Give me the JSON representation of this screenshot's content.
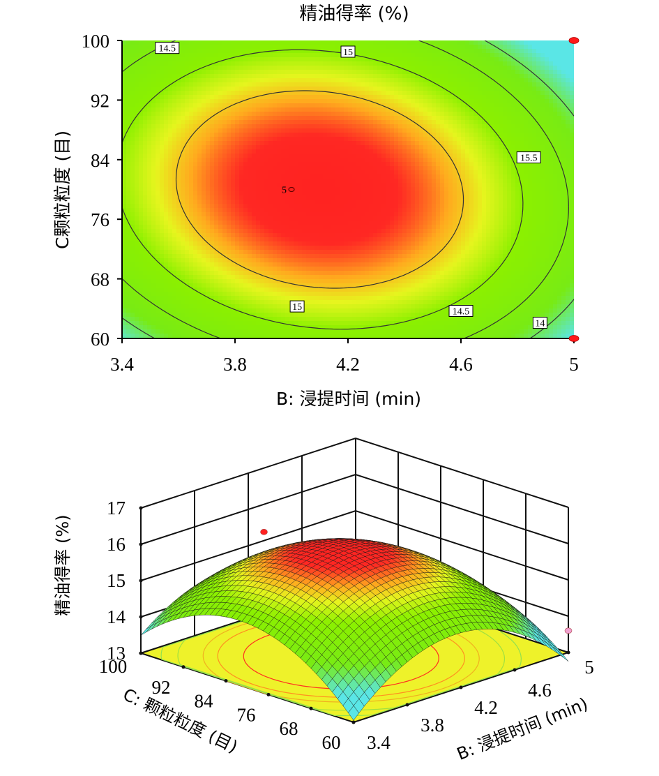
{
  "chart_data": [
    {
      "type": "contour",
      "title": "精油得率 (%)",
      "xlabel": "B: 浸提时间 (min)",
      "ylabel": "C颗粒粒度 (目)",
      "xlim": [
        3.4,
        5
      ],
      "ylim": [
        60,
        100
      ],
      "xticks": [
        "3.4",
        "3.8",
        "4.2",
        "4.6",
        "5"
      ],
      "yticks": [
        "60",
        "68",
        "76",
        "84",
        "92",
        "100"
      ],
      "contour_levels": [
        {
          "label": "14",
          "value": 14
        },
        {
          "label": "14.5",
          "value": 14.5
        },
        {
          "label": "15",
          "value": 15
        },
        {
          "label": "15.5",
          "value": 15.5
        }
      ],
      "center_point": {
        "label": "5",
        "x": 4.0,
        "y": 80
      },
      "design_points": [
        {
          "x": 5,
          "y": 100
        },
        {
          "x": 5,
          "y": 60
        }
      ],
      "optimum": {
        "x": 4.1,
        "y": 80,
        "value": 16.0
      },
      "colors": {
        "high": "#ff2020",
        "mid": "#f0f020",
        "low": "#6ff000",
        "min": "#60e0e0"
      }
    },
    {
      "type": "surface3d",
      "zlabel": "精油得率 (%)",
      "xlabel": "B: 浸提时间 (min)",
      "ylabel": "C: 颗粒粒度 (目)",
      "xlim": [
        3.4,
        5
      ],
      "ylim": [
        60,
        100
      ],
      "zlim": [
        13,
        17
      ],
      "xticks": [
        "3.4",
        "3.8",
        "4.2",
        "4.6",
        "5"
      ],
      "yticks": [
        "100",
        "92",
        "84",
        "76",
        "68",
        "60"
      ],
      "zticks": [
        "13",
        "14",
        "15",
        "16",
        "17"
      ],
      "design_points": [
        {
          "x": 4.0,
          "y": 92,
          "z": 16.0,
          "color": "#ff2020"
        },
        {
          "x": 5,
          "y": 60,
          "z": 13.6,
          "color": "#f0a0d0"
        }
      ]
    }
  ]
}
